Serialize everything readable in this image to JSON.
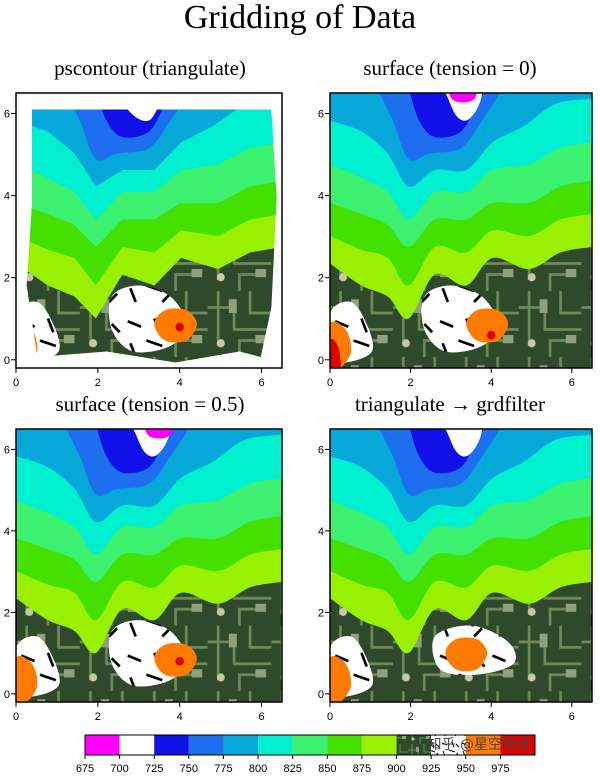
{
  "figure": {
    "title": "Gridding of Data",
    "watermark": "知乎 @星空物语"
  },
  "panels": [
    {
      "title": "pscontour (triangulate)"
    },
    {
      "title": "surface (tension = 0)"
    },
    {
      "title": "surface (tension = 0.5)"
    },
    {
      "title": "triangulate → grdfilter"
    }
  ],
  "colors": {
    "magenta": "#ff00ff",
    "white": "#ffffff",
    "blue": "#1010e8",
    "mid_blue": "#1e6ef0",
    "cyan_blue": "#05a8d8",
    "cyan": "#00f0d0",
    "mint": "#3cf070",
    "lime_green": "#44e000",
    "yellow_green": "#99f000",
    "circuit_green": "#2e4a2a",
    "orange": "#ff7a00",
    "red": "#e00000"
  },
  "chart_data": [
    {
      "type": "contour",
      "title": "pscontour (triangulate)",
      "xlim": [
        0,
        6.5
      ],
      "ylim": [
        -0.2,
        6.5
      ],
      "xticks": [
        0,
        2,
        4,
        6
      ],
      "yticks": [
        0,
        2,
        4,
        6
      ],
      "peak_high": {
        "x": 4.0,
        "y": 0.8,
        "level": "950-975"
      },
      "peak_low": null
    },
    {
      "type": "contour",
      "title": "surface (tension = 0)",
      "xlim": [
        0,
        6.5
      ],
      "ylim": [
        -0.2,
        6.5
      ],
      "xticks": [
        0,
        2,
        4,
        6
      ],
      "yticks": [
        0,
        2,
        4,
        6
      ],
      "peak_high": {
        "x": 4.0,
        "y": 0.6,
        "level": "950-975"
      },
      "peak_low": {
        "x": 3.3,
        "y": 6.4,
        "level": "675-700"
      }
    },
    {
      "type": "contour",
      "title": "surface (tension = 0.5)",
      "xlim": [
        0,
        6.5
      ],
      "ylim": [
        -0.2,
        6.5
      ],
      "xticks": [
        0,
        2,
        4,
        6
      ],
      "yticks": [
        0,
        2,
        4,
        6
      ],
      "peak_high": {
        "x": 4.0,
        "y": 0.8,
        "level": "950-975"
      },
      "peak_low": {
        "x": 3.5,
        "y": 6.4,
        "level": "675-700"
      }
    },
    {
      "type": "contour",
      "title": "triangulate → grdfilter",
      "xlim": [
        0,
        6.5
      ],
      "ylim": [
        -0.2,
        6.5
      ],
      "xticks": [
        0,
        2,
        4,
        6
      ],
      "yticks": [
        0,
        2,
        4,
        6
      ],
      "peak_high": null,
      "peak_low": null
    }
  ],
  "colorbar": {
    "ticks": [
      675,
      700,
      725,
      750,
      775,
      800,
      825,
      850,
      875,
      900,
      925,
      950,
      975
    ],
    "bins": [
      {
        "color": "#ff00ff"
      },
      {
        "color": "#ffffff"
      },
      {
        "color": "#1010e8"
      },
      {
        "color": "#1e6ef0"
      },
      {
        "color": "#05a8d8"
      },
      {
        "color": "#00f0d0"
      },
      {
        "color": "#3cf070"
      },
      {
        "color": "#44e000"
      },
      {
        "color": "#99f000"
      },
      {
        "color": "circuit"
      },
      {
        "color": "hatch"
      },
      {
        "color": "#ff7a00"
      },
      {
        "color": "#e00000"
      }
    ]
  }
}
